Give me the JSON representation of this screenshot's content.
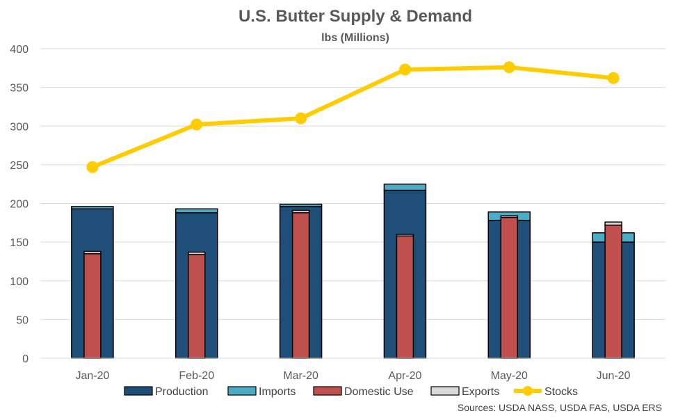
{
  "title": "U.S. Butter Supply & Demand",
  "subtitle": "lbs (Millions)",
  "source": "Sources: USDA NASS, USDA FAS, USDA ERS",
  "colors": {
    "production": "#1F4E79",
    "imports": "#4BACC6",
    "domestic": "#C0504D",
    "exports": "#D9D9D9",
    "stocks": "#FFCC00",
    "grid": "#D9D9D9",
    "text": "#595959"
  },
  "chart_data": {
    "type": "bar",
    "categories": [
      "Jan-20",
      "Feb-20",
      "Mar-20",
      "Apr-20",
      "May-20",
      "Jun-20"
    ],
    "ylim": [
      0,
      400
    ],
    "yticks": [
      0,
      50,
      100,
      150,
      200,
      250,
      300,
      350,
      400
    ],
    "grid": true,
    "legend_position": "bottom",
    "series": [
      {
        "name": "Production",
        "stack": "supply",
        "type": "bar",
        "values": [
          193,
          188,
          196,
          217,
          178,
          150
        ]
      },
      {
        "name": "Imports",
        "stack": "supply",
        "type": "bar",
        "values": [
          3,
          5,
          3,
          8,
          11,
          12
        ]
      },
      {
        "name": "Domestic Use",
        "stack": "demand",
        "type": "bar",
        "values": [
          135,
          134,
          188,
          158,
          182,
          172
        ]
      },
      {
        "name": "Exports",
        "stack": "demand",
        "type": "bar",
        "values": [
          3,
          3,
          3,
          2,
          2,
          4
        ]
      },
      {
        "name": "Stocks",
        "type": "line",
        "values": [
          247,
          302,
          310,
          373,
          376,
          362
        ]
      }
    ]
  }
}
